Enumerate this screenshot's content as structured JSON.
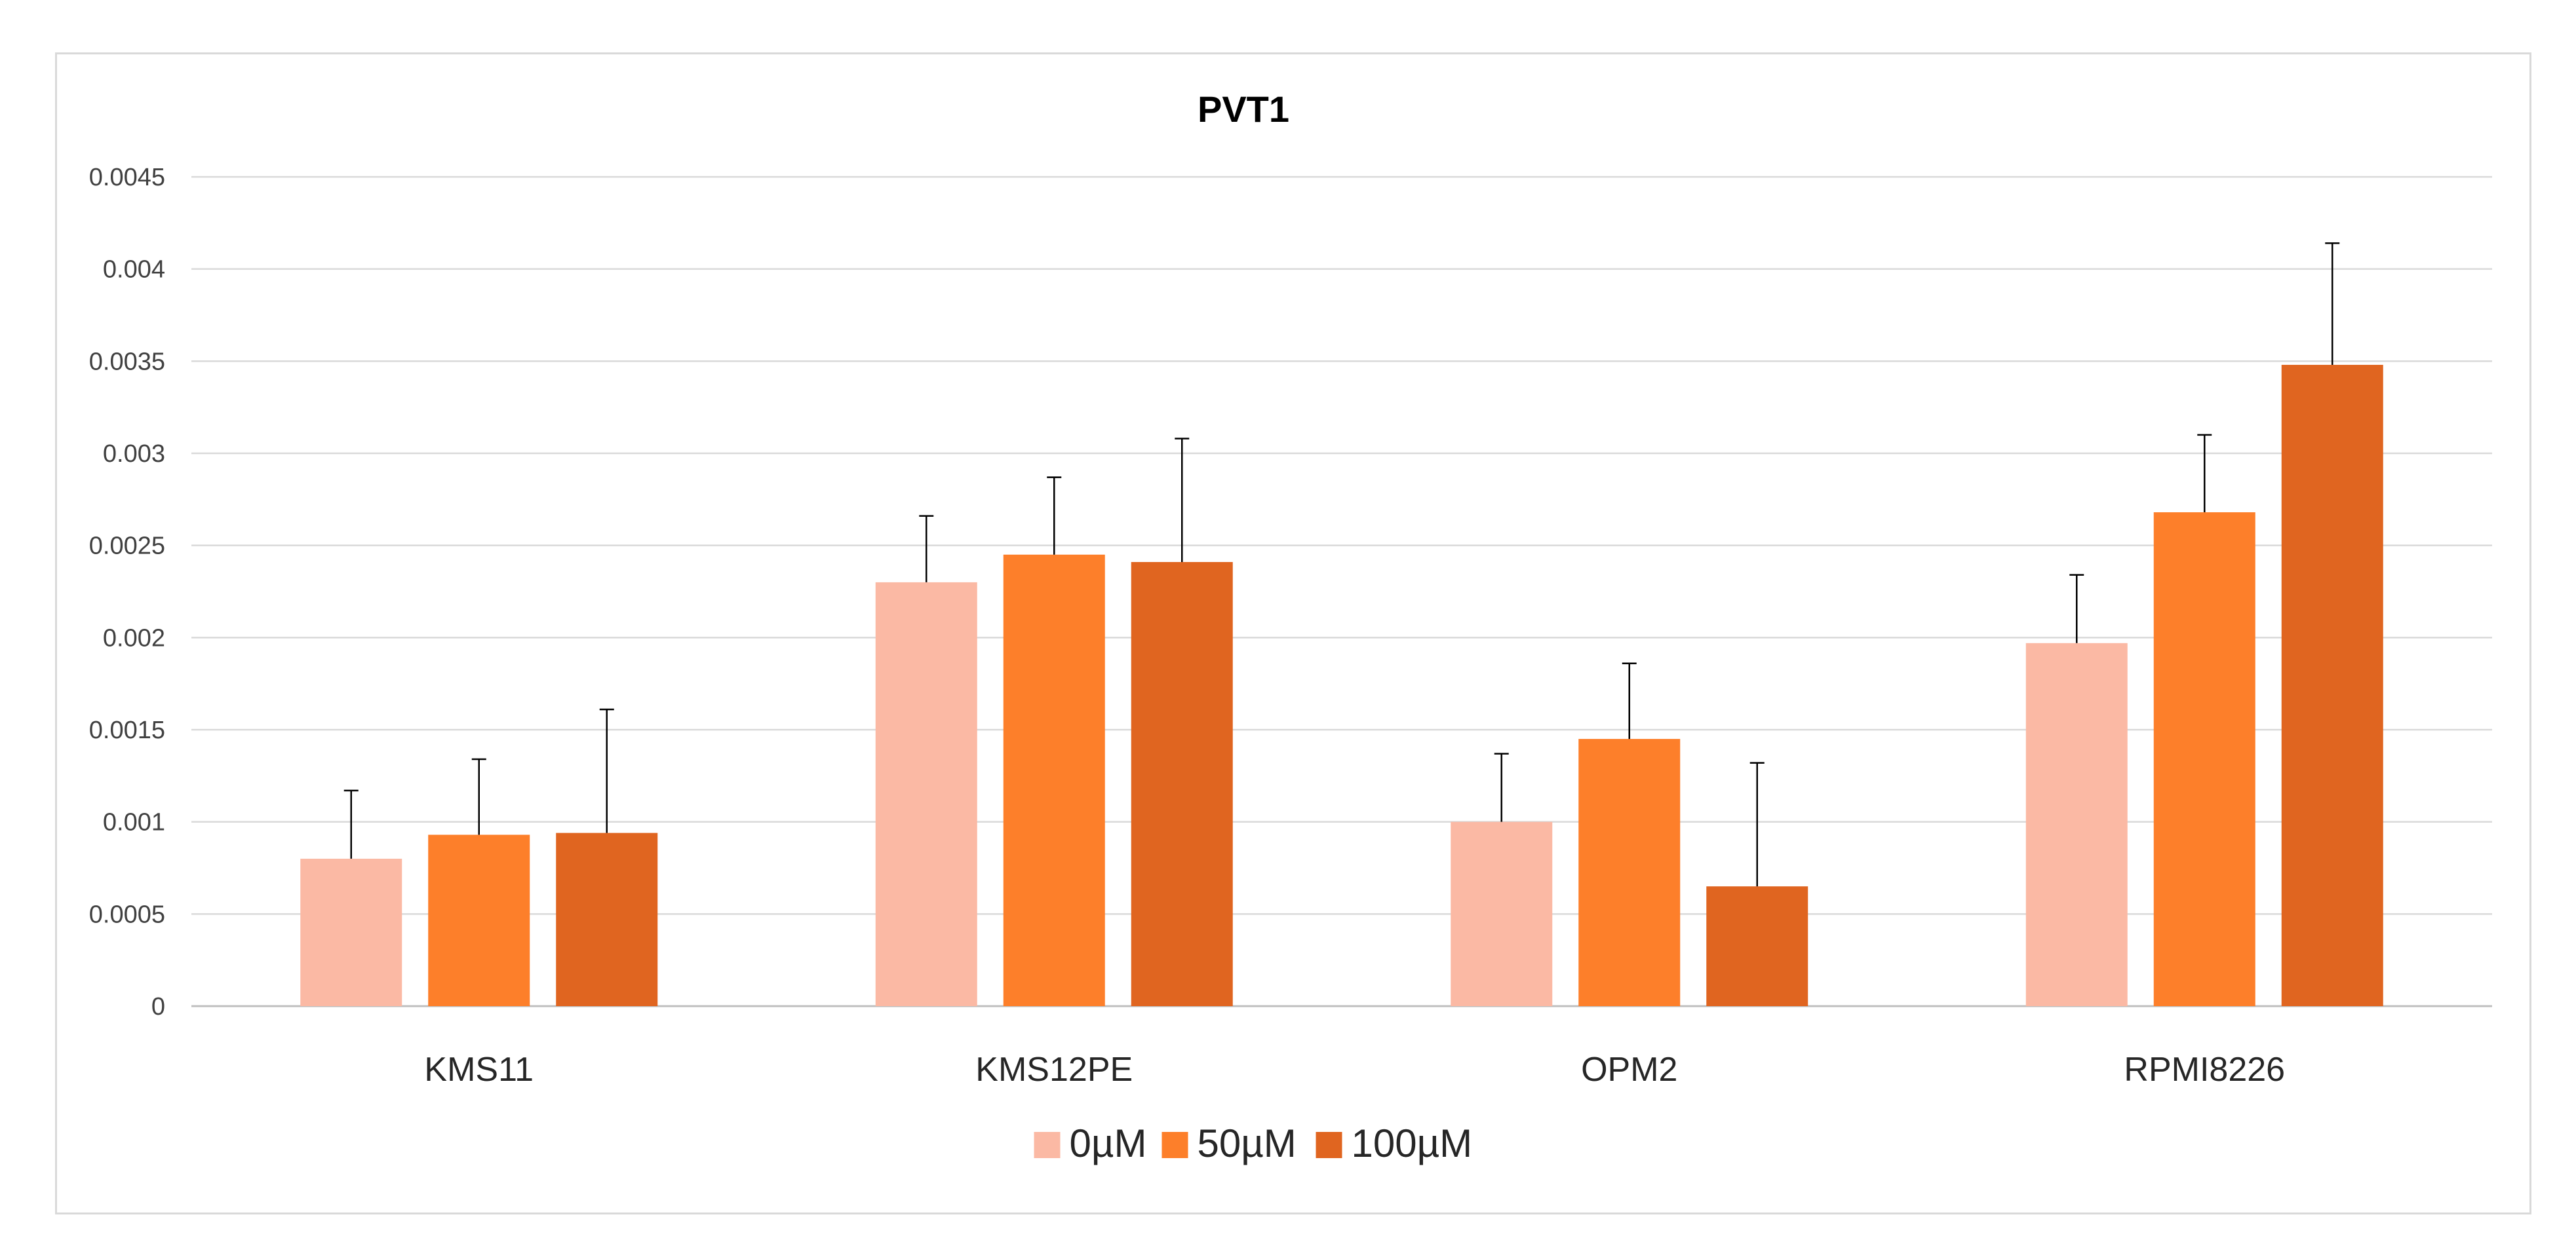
{
  "chart_data": {
    "type": "bar",
    "title": "PVT1",
    "xlabel": "",
    "ylabel": "",
    "categories": [
      "KMS11",
      "KMS12PE",
      "OPM2",
      "RPMI8226"
    ],
    "ylim": [
      0,
      0.0045
    ],
    "yticks": [
      0,
      0.0005,
      0.001,
      0.0015,
      0.002,
      0.0025,
      0.003,
      0.0035,
      0.004,
      0.0045
    ],
    "ytick_labels": [
      "0",
      "0.0005",
      "0.001",
      "0.0015",
      "0.002",
      "0.0025",
      "0.003",
      "0.0035",
      "0.004",
      "0.0045"
    ],
    "grid": true,
    "legend_position": "bottom",
    "series": [
      {
        "name": "0µM",
        "color": "#fbb9a4",
        "values": [
          0.0008,
          0.0023,
          0.001,
          0.00197
        ],
        "errors": [
          0.00037,
          0.00036,
          0.00037,
          0.00037
        ]
      },
      {
        "name": "50µM",
        "color": "#fd7f2a",
        "values": [
          0.00093,
          0.00245,
          0.00145,
          0.00268
        ],
        "errors": [
          0.00041,
          0.00042,
          0.00041,
          0.00042
        ]
      },
      {
        "name": "100µM",
        "color": "#e06520",
        "values": [
          0.00094,
          0.00241,
          0.00065,
          0.00348
        ],
        "errors": [
          0.00067,
          0.00067,
          0.00067,
          0.00066
        ]
      }
    ]
  }
}
